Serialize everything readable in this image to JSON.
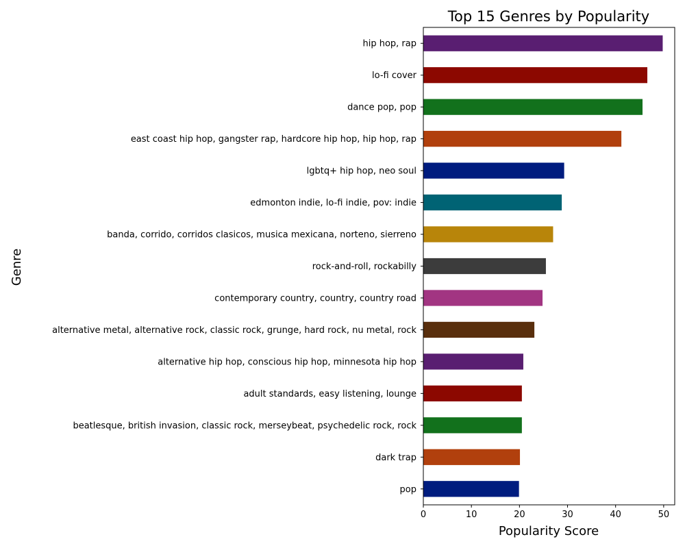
{
  "chart_data": {
    "type": "bar",
    "orientation": "horizontal",
    "title": "Top 15 Genres by Popularity",
    "xlabel": "Popularity Score",
    "ylabel": "Genre",
    "xlim": [
      0,
      52.3
    ],
    "xticks": [
      0,
      10,
      20,
      30,
      40,
      50
    ],
    "grid": false,
    "legend": "none",
    "categories": [
      "hip hop, rap",
      "lo-fi cover",
      "dance pop, pop",
      "east coast hip hop, gangster rap, hardcore hip hop, hip hop, rap",
      "lgbtq+ hip hop, neo soul",
      "edmonton indie, lo-fi indie, pov: indie",
      "banda, corrido, corridos clasicos, musica mexicana, norteno, sierreno",
      "rock-and-roll, rockabilly",
      "contemporary country, country, country road",
      "alternative metal, alternative rock, classic rock, grunge, hard rock, nu metal, rock",
      "alternative hip hop, conscious hip hop, minnesota hip hop",
      "adult standards, easy listening, lounge",
      "beatlesque, british invasion, classic rock, merseybeat, psychedelic rock, rock",
      "dark trap",
      "pop"
    ],
    "values": [
      49.8,
      46.6,
      45.6,
      41.2,
      29.3,
      28.8,
      27.0,
      25.5,
      24.8,
      23.1,
      20.8,
      20.5,
      20.5,
      20.1,
      19.9
    ],
    "colors": [
      "#591e71",
      "#8c0800",
      "#12711c",
      "#b1400d",
      "#001c7f",
      "#006374",
      "#b8850a",
      "#3c3c3c",
      "#a23582",
      "#592f0d",
      "#591e71",
      "#8c0800",
      "#12711c",
      "#b1400d",
      "#001c7f"
    ]
  }
}
